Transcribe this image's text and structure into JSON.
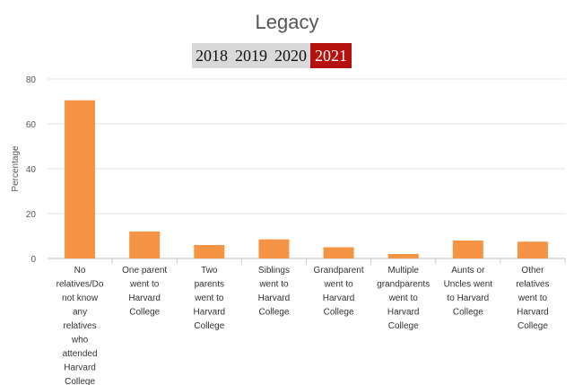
{
  "page": {
    "years": [
      {
        "label": "2018",
        "active": false
      },
      {
        "label": "2019",
        "active": false
      },
      {
        "label": "2020",
        "active": false
      },
      {
        "label": "2021",
        "active": true
      }
    ]
  },
  "colors": {
    "bar": "#f59445",
    "active_tab": "#b5120f",
    "tab_bg": "#d9d9d9",
    "grid": "#e3e3e3"
  },
  "chart_data": {
    "type": "bar",
    "title": "Legacy",
    "ylabel": "Percentage",
    "xlabel": "",
    "ylim": [
      0,
      80
    ],
    "yticks": [
      0,
      20,
      40,
      60,
      80
    ],
    "grid": true,
    "categories": [
      [
        "No",
        "relatives/Do",
        "not know",
        "any",
        "relatives",
        "who",
        "attended",
        "Harvard",
        "College"
      ],
      [
        "One parent",
        "went to",
        "Harvard",
        "College"
      ],
      [
        "Two",
        "parents",
        "went to",
        "Harvard",
        "College"
      ],
      [
        "Siblings",
        "went to",
        "Harvard",
        "College"
      ],
      [
        "Grandparent",
        "went to",
        "Harvard",
        "College"
      ],
      [
        "Multiple",
        "grandparents",
        "went to",
        "Harvard",
        "College"
      ],
      [
        "Aunts or",
        "Uncles went",
        "to Harvard",
        "College"
      ],
      [
        "Other",
        "relatives",
        "went to",
        "Harvard",
        "College"
      ]
    ],
    "values": [
      70.5,
      12,
      6,
      8.5,
      5,
      2,
      8,
      7.5
    ]
  }
}
